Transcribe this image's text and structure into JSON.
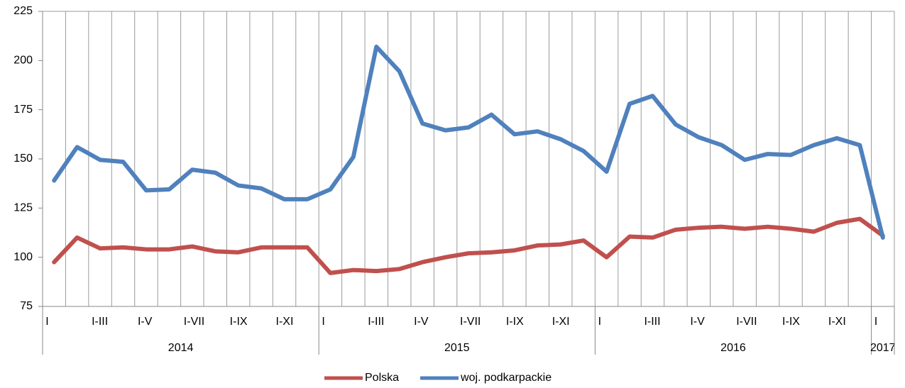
{
  "chart_data": {
    "type": "line",
    "categories": [
      "I",
      null,
      "I-III",
      null,
      "I-V",
      null,
      "I-VII",
      null,
      "I-IX",
      null,
      "I-XI",
      null,
      "I",
      null,
      "I-III",
      null,
      "I-V",
      null,
      "I-VII",
      null,
      "I-IX",
      null,
      "I-XI",
      null,
      "I",
      null,
      "I-III",
      null,
      "I-V",
      null,
      "I-VII",
      null,
      "I-IX",
      null,
      "I-XI",
      null,
      "I"
    ],
    "groups": [
      "2014",
      "2015",
      "2016",
      "2017"
    ],
    "series": [
      {
        "name": "Polska",
        "color": "#c0504d",
        "values": [
          97.5,
          110,
          104.5,
          105,
          104,
          104,
          105.5,
          103,
          102.5,
          105,
          105,
          105,
          92,
          93.5,
          93,
          94,
          97.5,
          100,
          102,
          102.5,
          103.5,
          106,
          106.5,
          108.5,
          100,
          110.5,
          110,
          114,
          115,
          115.5,
          114.5,
          115.5,
          114.5,
          113,
          117.5,
          119.5,
          111
        ]
      },
      {
        "name": "woj. podkarpackie",
        "color": "#4f81bd",
        "values": [
          139,
          156,
          149.5,
          148.5,
          134,
          134.5,
          144.5,
          143,
          136.5,
          135,
          129.5,
          129.5,
          134.5,
          151,
          207,
          194.5,
          168,
          164.5,
          166,
          172.5,
          162.5,
          164,
          160,
          154,
          143.5,
          178,
          182,
          167.5,
          161,
          157,
          149.5,
          152.5,
          152,
          157,
          160.5,
          157,
          110
        ]
      }
    ],
    "ylim": [
      75,
      225
    ],
    "yticks": [
      75,
      100,
      125,
      150,
      175,
      200,
      225
    ],
    "grid": true,
    "legend": "bottom"
  }
}
